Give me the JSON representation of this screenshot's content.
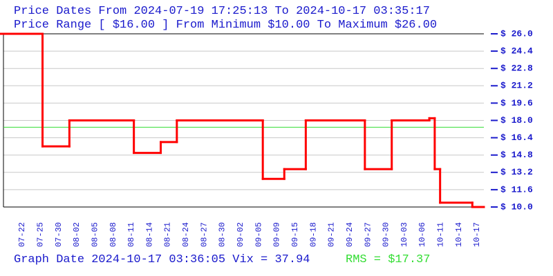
{
  "chart_data": {
    "type": "step",
    "header": {
      "dates_prefix": "Price Dates From",
      "date_from": "2024-07-19 17:25:13",
      "dates_joiner": "To",
      "date_to": "2024-10-17 03:35:17",
      "range_text": "Price Range [ $16.00 ] From Minimum $10.00 To Maximum $26.00"
    },
    "categories": [
      "07-22",
      "07-25",
      "07-30",
      "08-02",
      "08-05",
      "08-08",
      "08-11",
      "08-14",
      "08-21",
      "08-24",
      "08-27",
      "08-30",
      "09-02",
      "09-05",
      "09-09",
      "09-15",
      "09-18",
      "09-21",
      "09-24",
      "09-27",
      "09-30",
      "10-03",
      "10-06",
      "10-11",
      "10-14",
      "10-17"
    ],
    "series": [
      {
        "name": "Price",
        "color": "#ff0000",
        "x": [
          "2024-07-19",
          "2024-07-27",
          "2024-08-01",
          "2024-08-13",
          "2024-08-18",
          "2024-08-21",
          "2024-09-06",
          "2024-09-10",
          "2024-09-14",
          "2024-09-25",
          "2024-09-30",
          "2024-10-07",
          "2024-10-08",
          "2024-10-09",
          "2024-10-15"
        ],
        "values": [
          26.0,
          15.6,
          18.0,
          15.0,
          16.0,
          18.0,
          12.6,
          13.5,
          18.0,
          13.5,
          18.0,
          18.2,
          13.5,
          10.4,
          10.0
        ]
      }
    ],
    "rms": {
      "label": "RMS =",
      "value": 17.37,
      "value_label": "$17.37",
      "color": "#33dd33"
    },
    "footer": "Graph Date 2024-10-17 03:36:05 Vix = 37.94",
    "ylim": [
      10,
      26
    ],
    "yticks": [
      {
        "value": 10.0,
        "label": "$ 10.0"
      },
      {
        "value": 11.6,
        "label": "$ 11.6"
      },
      {
        "value": 13.2,
        "label": "$ 13.2"
      },
      {
        "value": 14.8,
        "label": "$ 14.8"
      },
      {
        "value": 16.4,
        "label": "$ 16.4"
      },
      {
        "value": 18.0,
        "label": "$ 18.0"
      },
      {
        "value": 19.6,
        "label": "$ 19.6"
      },
      {
        "value": 21.2,
        "label": "$ 21.2"
      },
      {
        "value": 22.8,
        "label": "$ 22.8"
      },
      {
        "value": 24.4,
        "label": "$ 24.4"
      },
      {
        "value": 26.0,
        "label": "$ 26.0"
      }
    ],
    "grid": true
  }
}
